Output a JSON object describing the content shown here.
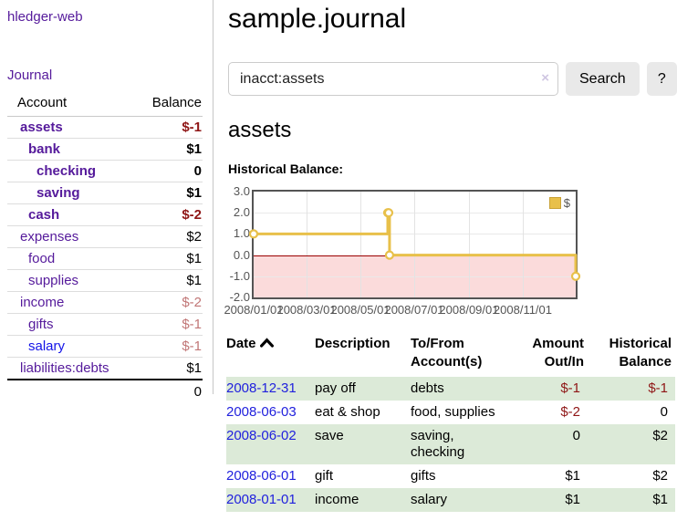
{
  "sidebar": {
    "app_title": "hledger-web",
    "journal_link": "Journal",
    "table": {
      "header": {
        "account": "Account",
        "balance": "Balance"
      },
      "rows": [
        {
          "name": "assets",
          "balance": "$-1"
        },
        {
          "name": "bank",
          "balance": "$1"
        },
        {
          "name": "checking",
          "balance": "0"
        },
        {
          "name": "saving",
          "balance": "$1"
        },
        {
          "name": "cash",
          "balance": "$-2"
        },
        {
          "name": "expenses",
          "balance": "$2"
        },
        {
          "name": "food",
          "balance": "$1"
        },
        {
          "name": "supplies",
          "balance": "$1"
        },
        {
          "name": "income",
          "balance": "$-2"
        },
        {
          "name": "gifts",
          "balance": "$-1"
        },
        {
          "name": "salary",
          "balance": "$-1"
        },
        {
          "name": "liabilities:debts",
          "balance": "$1"
        }
      ],
      "total": "0"
    }
  },
  "main": {
    "title": "sample.journal",
    "search": {
      "value": "inacct:assets",
      "clear_icon": "×",
      "button_label": "Search",
      "help_label": "?"
    },
    "account_heading": "assets",
    "chart_label": "Historical Balance:",
    "register": {
      "headers": {
        "date": "Date",
        "description": "Description",
        "accounts": "To/From Account(s)",
        "amount": "Amount Out/In",
        "balance": "Historical Balance"
      },
      "rows": [
        {
          "date": "2008-12-31",
          "description": "pay off",
          "accounts": "debts",
          "amount": "$-1",
          "balance": "$-1"
        },
        {
          "date": "2008-06-03",
          "description": "eat & shop",
          "accounts": "food, supplies",
          "amount": "$-2",
          "balance": "0"
        },
        {
          "date": "2008-06-02",
          "description": "save",
          "accounts": "saving, checking",
          "amount": "0",
          "balance": "$2"
        },
        {
          "date": "2008-06-01",
          "description": "gift",
          "accounts": "gifts",
          "amount": "$1",
          "balance": "$2"
        },
        {
          "date": "2008-01-01",
          "description": "income",
          "accounts": "salary",
          "amount": "$1",
          "balance": "$1"
        }
      ]
    }
  },
  "chart_data": {
    "type": "line",
    "step": true,
    "title": "Historical Balance",
    "legend": [
      {
        "name": "$",
        "color": "#e8c04a"
      }
    ],
    "xlim": [
      "2008-01-01",
      "2008-12-31"
    ],
    "ylim": [
      -2,
      3
    ],
    "y_ticks": [
      {
        "value": 3,
        "label": "3.0"
      },
      {
        "value": 2,
        "label": "2.0"
      },
      {
        "value": 1,
        "label": "1.0"
      },
      {
        "value": 0,
        "label": "0.0"
      },
      {
        "value": -1,
        "label": "-1.0"
      },
      {
        "value": -2,
        "label": "-2.0"
      }
    ],
    "x_ticks": [
      {
        "date": "2008-01-01",
        "label": "2008/01/01"
      },
      {
        "date": "2008-03-01",
        "label": "2008/03/01"
      },
      {
        "date": "2008-05-01",
        "label": "2008/05/01"
      },
      {
        "date": "2008-07-01",
        "label": "2008/07/01"
      },
      {
        "date": "2008-09-01",
        "label": "2008/09/01"
      },
      {
        "date": "2008-11-01",
        "label": "2008/11/01"
      }
    ],
    "series": [
      {
        "name": "$",
        "color": "#e8c04a",
        "points": [
          [
            "2008-01-01",
            1
          ],
          [
            "2008-06-01",
            2
          ],
          [
            "2008-06-02",
            2
          ],
          [
            "2008-06-03",
            0
          ],
          [
            "2008-12-31",
            -1
          ]
        ]
      }
    ],
    "negative_region_color": "#fbdbdb",
    "zero_line_color": "#9a0000",
    "grid": true,
    "legend_position": "top-right"
  },
  "colors": {
    "link_purple": "#551a9b",
    "link_blue": "#1414e8",
    "date_link_blue": "#2121dd",
    "negative_strong": "#8f1616",
    "negative_soft": "#c17676",
    "row_green": "#dcead8",
    "chart_line_gold": "#e8c04a",
    "negative_region_pink": "#fbdbdb",
    "zero_line_red": "#9a0000",
    "button_gray": "#e9e9e9"
  }
}
